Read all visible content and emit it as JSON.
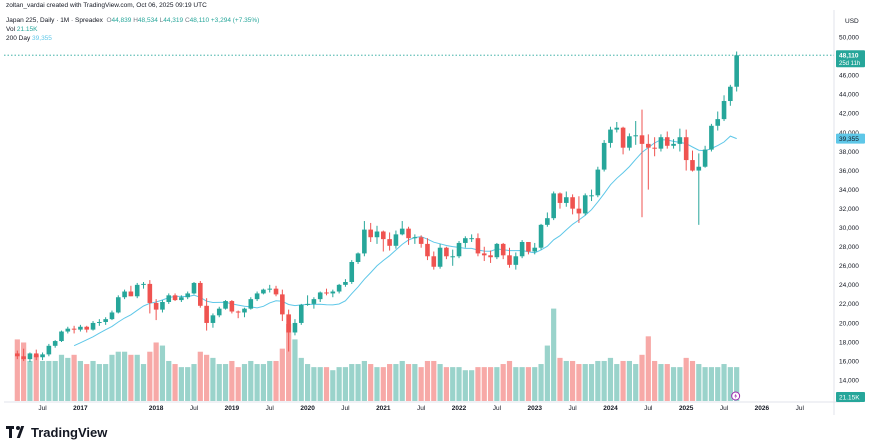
{
  "header": {
    "attribution": "zoltan_vardai created with TradingView.com, Oct 06, 2025 09:19 UTC",
    "symbol": "Japan 225, Daily · 1M · Spreadex",
    "ohlc": {
      "o_label": "O",
      "o": "44,839",
      "h_label": "H",
      "h": "48,534",
      "l_label": "L",
      "l": "44,319",
      "c_label": "C",
      "c": "48,110",
      "change": "+3,294 (+7.35%)"
    },
    "vol_label": "Vol",
    "vol_value": "21.15K",
    "ma_label": "200 Day",
    "ma_value": "39,355"
  },
  "brand": {
    "name": "TradingView"
  },
  "colors": {
    "up": "#26a69a",
    "down": "#ef5350",
    "vol_up": "#9ad3cb",
    "vol_down": "#f7a9a7",
    "ma": "#5ec7e8",
    "price_badge": "#26a69a",
    "ma_badge": "#5ec7e8"
  },
  "chart_data": {
    "type": "candlestick",
    "currency": "USD",
    "y_ticks": [
      14000,
      16000,
      18000,
      20000,
      22000,
      24000,
      26000,
      28000,
      30000,
      32000,
      34000,
      36000,
      38000,
      40000,
      42000,
      44000,
      46000,
      48000,
      50000
    ],
    "y_tick_labels": [
      "14,000",
      "16,000",
      "18,000",
      "20,000",
      "22,000",
      "24,000",
      "26,000",
      "28,000",
      "30,000",
      "32,000",
      "34,000",
      "36,000",
      "38,000",
      "40,000",
      "42,000",
      "44,000",
      "46,000",
      "48,000",
      "50,000"
    ],
    "x_ticks": [
      {
        "label": "Jul",
        "month": 6
      },
      {
        "label": "2017",
        "month": 12
      },
      {
        "label": "2018",
        "month": 24
      },
      {
        "label": "Jul",
        "month": 30
      },
      {
        "label": "2019",
        "month": 36
      },
      {
        "label": "Jul",
        "month": 42
      },
      {
        "label": "2020",
        "month": 48
      },
      {
        "label": "Jul",
        "month": 54
      },
      {
        "label": "2021",
        "month": 60
      },
      {
        "label": "Jul",
        "month": 66
      },
      {
        "label": "2022",
        "month": 72
      },
      {
        "label": "Jul",
        "month": 78
      },
      {
        "label": "2023",
        "month": 84
      },
      {
        "label": "Jul",
        "month": 90
      },
      {
        "label": "2024",
        "month": 96
      },
      {
        "label": "Jul",
        "month": 102
      },
      {
        "label": "2025",
        "month": 108
      },
      {
        "label": "Jul",
        "month": 114
      },
      {
        "label": "2026",
        "month": 120
      },
      {
        "label": "Jul",
        "month": 126
      }
    ],
    "last_price": 48110,
    "last_price_label": "48,110",
    "countdown_label": "25d 11h",
    "ma_last": 39355,
    "ma_last_label": "39,355",
    "volume_label": "21.15K",
    "candles": [
      [
        16800,
        17100,
        16200,
        16500,
        20
      ],
      [
        16500,
        17300,
        16000,
        16200,
        19
      ],
      [
        16200,
        16900,
        15900,
        16800,
        13
      ],
      [
        16800,
        17200,
        16100,
        16400,
        15
      ],
      [
        16400,
        16900,
        16100,
        16700,
        13
      ],
      [
        16700,
        17800,
        16500,
        17600,
        13
      ],
      [
        17600,
        18200,
        17400,
        18100,
        13
      ],
      [
        18100,
        19200,
        18000,
        19100,
        15
      ],
      [
        19100,
        19600,
        18900,
        19400,
        14
      ],
      [
        19400,
        19700,
        18900,
        19300,
        15
      ],
      [
        19300,
        19800,
        19100,
        19600,
        13
      ],
      [
        19600,
        19700,
        19000,
        19300,
        12
      ],
      [
        19300,
        20200,
        19200,
        20000,
        13
      ],
      [
        20000,
        20400,
        19700,
        20100,
        12
      ],
      [
        20100,
        20600,
        19800,
        20400,
        12
      ],
      [
        20400,
        21300,
        20300,
        21100,
        15
      ],
      [
        21100,
        22900,
        21000,
        22700,
        16
      ],
      [
        22700,
        23500,
        22500,
        23300,
        16
      ],
      [
        23300,
        23900,
        22800,
        22800,
        15
      ],
      [
        22800,
        24200,
        22600,
        24000,
        15
      ],
      [
        24000,
        24300,
        23600,
        24100,
        12
      ],
      [
        24100,
        24500,
        21000,
        22100,
        16
      ],
      [
        22100,
        22500,
        20300,
        21400,
        19
      ],
      [
        21400,
        22400,
        21100,
        22200,
        18
      ],
      [
        22200,
        23100,
        22000,
        22900,
        13
      ],
      [
        22900,
        23100,
        22300,
        22400,
        12
      ],
      [
        22400,
        22900,
        22200,
        22700,
        11
      ],
      [
        22700,
        23300,
        22500,
        23100,
        11
      ],
      [
        23100,
        24300,
        23000,
        24200,
        12
      ],
      [
        24200,
        24400,
        21600,
        21800,
        16
      ],
      [
        21800,
        22600,
        19200,
        20000,
        15
      ],
      [
        20000,
        21000,
        19500,
        20800,
        14
      ],
      [
        20800,
        21700,
        20600,
        21500,
        12
      ],
      [
        21500,
        22400,
        21400,
        22300,
        12
      ],
      [
        22300,
        22400,
        21000,
        21200,
        13
      ],
      [
        21200,
        21300,
        20500,
        21100,
        11
      ],
      [
        21100,
        21600,
        20600,
        21500,
        12
      ],
      [
        21500,
        22700,
        21400,
        22500,
        13
      ],
      [
        22500,
        23300,
        22300,
        23100,
        12
      ],
      [
        23100,
        23600,
        23000,
        23500,
        12
      ],
      [
        23500,
        24000,
        23200,
        23600,
        13
      ],
      [
        23600,
        23900,
        22800,
        23000,
        13
      ],
      [
        23000,
        23500,
        20200,
        20900,
        17
      ],
      [
        20900,
        21400,
        17000,
        19000,
        25
      ],
      [
        19000,
        20400,
        18700,
        20000,
        20
      ],
      [
        20000,
        22000,
        19800,
        21900,
        14
      ],
      [
        21900,
        22900,
        21800,
        22000,
        12
      ],
      [
        22000,
        22700,
        21500,
        22500,
        11
      ],
      [
        22500,
        23300,
        22200,
        23200,
        11
      ],
      [
        23200,
        23600,
        22900,
        23100,
        11
      ],
      [
        23100,
        23500,
        22700,
        23300,
        10
      ],
      [
        23300,
        24100,
        23100,
        24000,
        11
      ],
      [
        24000,
        24600,
        23800,
        24300,
        11
      ],
      [
        24300,
        26600,
        24100,
        26400,
        12
      ],
      [
        26400,
        27400,
        26200,
        27300,
        12
      ],
      [
        27300,
        30700,
        27000,
        29800,
        13
      ],
      [
        29800,
        30500,
        28500,
        29000,
        12
      ],
      [
        29000,
        30200,
        28300,
        29600,
        11
      ],
      [
        29600,
        29700,
        27500,
        28800,
        11
      ],
      [
        28800,
        29500,
        27600,
        28100,
        12
      ],
      [
        28100,
        29700,
        27800,
        29300,
        12
      ],
      [
        29300,
        30700,
        29200,
        29900,
        13
      ],
      [
        29900,
        30100,
        28200,
        28900,
        12
      ],
      [
        28900,
        29300,
        28300,
        29000,
        12
      ],
      [
        29000,
        29200,
        27900,
        28300,
        11
      ],
      [
        28300,
        28900,
        26600,
        27000,
        13
      ],
      [
        27000,
        27500,
        25600,
        25900,
        13
      ],
      [
        25900,
        28300,
        25700,
        27900,
        12
      ],
      [
        27900,
        28000,
        26700,
        27000,
        11
      ],
      [
        27000,
        27700,
        26000,
        27000,
        11
      ],
      [
        27000,
        28600,
        26800,
        28400,
        11
      ],
      [
        28400,
        29100,
        27900,
        28900,
        10
      ],
      [
        28900,
        29300,
        28500,
        28900,
        10
      ],
      [
        28900,
        29400,
        27000,
        27300,
        11
      ],
      [
        27300,
        28000,
        26500,
        27100,
        11
      ],
      [
        27100,
        27600,
        26300,
        26900,
        11
      ],
      [
        26900,
        28400,
        26700,
        28300,
        11
      ],
      [
        28300,
        28400,
        26700,
        27100,
        12
      ],
      [
        27100,
        27900,
        25800,
        26100,
        13
      ],
      [
        26100,
        27400,
        25600,
        27000,
        11
      ],
      [
        27000,
        28700,
        26800,
        28500,
        11
      ],
      [
        28500,
        28500,
        27200,
        27500,
        11
      ],
      [
        27500,
        28400,
        27200,
        27900,
        11
      ],
      [
        27900,
        30400,
        27700,
        30300,
        12
      ],
      [
        30300,
        31600,
        30100,
        31000,
        18
      ],
      [
        31000,
        33800,
        30800,
        33600,
        30
      ],
      [
        33600,
        33700,
        32000,
        32600,
        14
      ],
      [
        32600,
        33800,
        32200,
        33200,
        13
      ],
      [
        33200,
        33500,
        31400,
        32000,
        13
      ],
      [
        32000,
        33300,
        30500,
        31500,
        12
      ],
      [
        31500,
        33600,
        31300,
        33400,
        12
      ],
      [
        33400,
        34000,
        32800,
        33400,
        12
      ],
      [
        33400,
        36400,
        33200,
        36100,
        13
      ],
      [
        36100,
        39200,
        35900,
        38900,
        13
      ],
      [
        38900,
        40600,
        38400,
        40300,
        14
      ],
      [
        40300,
        41100,
        40000,
        40500,
        12
      ],
      [
        40500,
        40600,
        37700,
        38400,
        13
      ],
      [
        38400,
        39900,
        38100,
        39600,
        13
      ],
      [
        39600,
        41200,
        38700,
        39700,
        12
      ],
      [
        39700,
        42400,
        31100,
        38800,
        15
      ],
      [
        38800,
        39800,
        34000,
        38400,
        21
      ],
      [
        38400,
        39500,
        37500,
        38300,
        13
      ],
      [
        38300,
        39800,
        38000,
        39500,
        12
      ],
      [
        39500,
        40100,
        38300,
        38600,
        12
      ],
      [
        38600,
        39300,
        38300,
        38800,
        11
      ],
      [
        38800,
        40400,
        38000,
        39500,
        11
      ],
      [
        39500,
        40300,
        36000,
        37100,
        14
      ],
      [
        37100,
        38100,
        35900,
        36000,
        13
      ],
      [
        36000,
        37800,
        30300,
        36400,
        12
      ],
      [
        36400,
        38600,
        36300,
        38200,
        11
      ],
      [
        38200,
        40900,
        38000,
        40700,
        11
      ],
      [
        40700,
        42200,
        40200,
        41400,
        11
      ],
      [
        41400,
        43900,
        41200,
        43300,
        12
      ],
      [
        43300,
        45000,
        42800,
        44800,
        11
      ],
      [
        44800,
        48500,
        44300,
        48100,
        11
      ]
    ]
  }
}
